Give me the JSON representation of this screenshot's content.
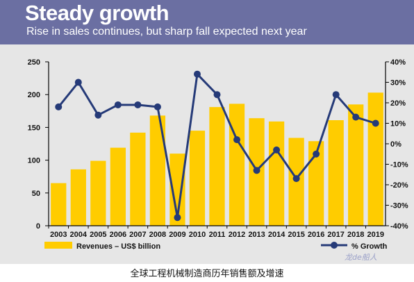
{
  "header": {
    "title": "Steady growth",
    "subtitle": "Rise in sales continues, but sharp fall expected next year"
  },
  "caption": "全球工程机械制造商历年销售额及增速",
  "watermark": "龙de船人",
  "colors": {
    "bar": "#ffcc00",
    "line": "#253a78",
    "banner": "#6b6fa2",
    "plot_bg": "#e6e6e6"
  },
  "chart_data": {
    "type": "bar",
    "categories": [
      "2003",
      "2004",
      "2005",
      "2006",
      "2007",
      "2008",
      "2009",
      "2010",
      "2011",
      "2012",
      "2013",
      "2014",
      "2015",
      "2016",
      "2017",
      "2018",
      "2019"
    ],
    "series": [
      {
        "name": "Revenues – US$ billion",
        "type": "bar",
        "axis": "left",
        "values": [
          65,
          86,
          99,
          119,
          142,
          168,
          110,
          145,
          181,
          186,
          164,
          159,
          134,
          129,
          161,
          185,
          203
        ]
      },
      {
        "name": "% Growth",
        "type": "line",
        "axis": "right",
        "values": [
          18,
          30,
          14,
          19,
          19,
          18,
          -36,
          34,
          24,
          2,
          -13,
          -3,
          -17,
          -5,
          24,
          13,
          10
        ]
      }
    ],
    "y_left": {
      "ylim": [
        0,
        250
      ],
      "ticks": [
        "0",
        "50",
        "100",
        "150",
        "200",
        "250"
      ]
    },
    "y_right": {
      "ylim": [
        -40,
        40
      ],
      "ticks": [
        "-40%",
        "-30%",
        "-20%",
        "-10%",
        "0%",
        "10%",
        "20%",
        "30%",
        "40%"
      ]
    },
    "legend": {
      "bar_label": "Revenues – US$ billion",
      "line_label": "% Growth",
      "placement": "bottom"
    },
    "grid": false
  }
}
